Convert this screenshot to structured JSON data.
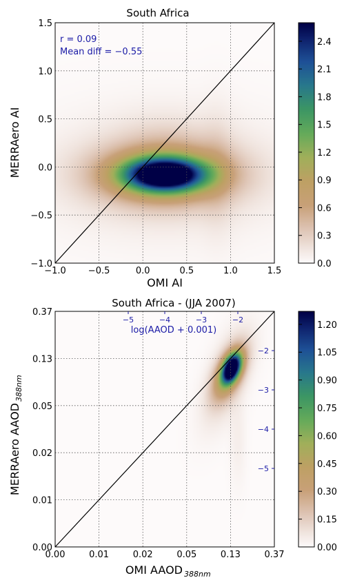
{
  "chart_data": [
    {
      "type": "heatmap",
      "title": "South Africa",
      "xlabel": "OMI AI",
      "ylabel": "MERRAero AI",
      "xlim": [
        -1.0,
        1.5
      ],
      "ylim": [
        -1.0,
        1.5
      ],
      "xticks": [
        "−1.0",
        "−0.5",
        "0.0",
        "0.5",
        "1.0",
        "1.5"
      ],
      "yticks": [
        "−1.0",
        "−0.5",
        "0.0",
        "0.5",
        "1.0",
        "1.5"
      ],
      "grid": true,
      "one_to_one_line": true,
      "annotations": [
        "r = 0.09",
        "Mean diff = −0.55"
      ],
      "colorbar": {
        "ticks": [
          "0.0",
          "0.3",
          "0.6",
          "0.9",
          "1.2",
          "1.5",
          "1.8",
          "2.1",
          "2.4"
        ],
        "range": [
          0,
          2.6
        ]
      },
      "density_blobs": [
        {
          "x": 0.25,
          "y": -0.08,
          "sx": 0.32,
          "sy": 0.12,
          "peak": 2.55
        },
        {
          "x": 0.25,
          "y": -0.08,
          "sx": 0.55,
          "sy": 0.22,
          "peak": 0.9
        },
        {
          "x": 0.25,
          "y": -0.08,
          "sx": 0.95,
          "sy": 0.45,
          "peak": 0.18
        },
        {
          "x": 0.85,
          "y": -0.05,
          "sx": 0.12,
          "sy": 0.45,
          "peak": 0.12
        },
        {
          "x": 0.25,
          "y": 0.25,
          "sx": 0.4,
          "sy": 0.25,
          "peak": 0.1
        }
      ]
    },
    {
      "type": "heatmap",
      "title": "South Africa - (JJA 2007)",
      "xlabel": "OMI AAOD",
      "xlabel_sub": "388nm",
      "ylabel": "MERRAero AAOD",
      "ylabel_sub": "388nm",
      "xticks": [
        "0.00",
        "0.01",
        "0.02",
        "0.05",
        "0.13",
        "0.37"
      ],
      "yticks": [
        "0.00",
        "0.01",
        "0.02",
        "0.05",
        "0.13",
        "0.37"
      ],
      "secondary_axis_label": "log(AAOD + 0.001)",
      "secondary_ticks_top": [
        "−5",
        "−4",
        "−3",
        "−2"
      ],
      "secondary_ticks_right": [
        "−2",
        "−3",
        "−4",
        "−5"
      ],
      "log_range": [
        -7,
        -1
      ],
      "grid": true,
      "one_to_one_line": true,
      "colorbar": {
        "ticks": [
          "0.00",
          "0.15",
          "0.30",
          "0.45",
          "0.60",
          "0.75",
          "0.90",
          "1.05",
          "1.20"
        ],
        "range": [
          0,
          1.27
        ]
      },
      "density_blobs": [
        {
          "x": -2.17,
          "y": -2.45,
          "sx": 0.17,
          "sy": 0.24,
          "rho": 0.4,
          "peak": 1.25
        },
        {
          "x": -2.23,
          "y": -2.55,
          "sx": 0.3,
          "sy": 0.45,
          "rho": 0.55,
          "peak": 0.5
        },
        {
          "x": -2.3,
          "y": -2.7,
          "sx": 0.45,
          "sy": 0.85,
          "rho": 0.6,
          "peak": 0.13
        },
        {
          "x": -2.0,
          "y": -4.3,
          "sx": 0.15,
          "sy": 0.8,
          "rho": 0.0,
          "peak": 0.04
        }
      ]
    }
  ]
}
